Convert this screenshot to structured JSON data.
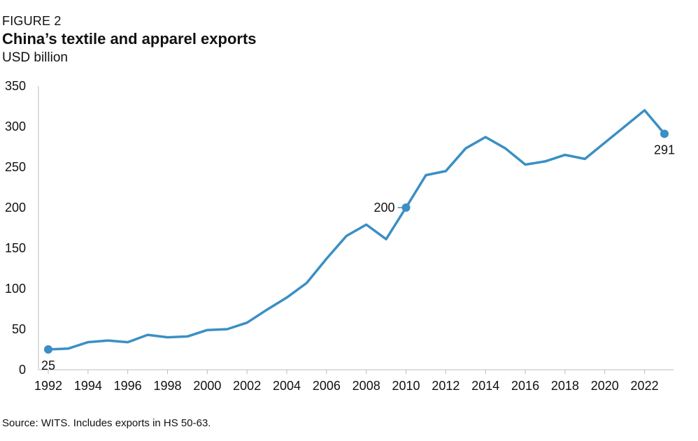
{
  "figure_label": "FIGURE 2",
  "chart_data": {
    "type": "line",
    "title": "China’s textile and apparel exports",
    "subtitle": "USD billion",
    "xlabel": "",
    "ylabel": "USD billion",
    "ylim": [
      0,
      350
    ],
    "yticks": [
      0,
      50,
      100,
      150,
      200,
      250,
      300,
      350
    ],
    "xlim": [
      1992,
      2023
    ],
    "xtick_labels": [
      "1992",
      "1994",
      "1996",
      "1998",
      "2000",
      "2002",
      "2004",
      "2006",
      "2008",
      "2010",
      "2012",
      "2014",
      "2016",
      "2018",
      "2020",
      "2022"
    ],
    "grid": false,
    "series": [
      {
        "name": "China textile and apparel exports",
        "color": "#3a8fc4",
        "x": [
          1992,
          1993,
          1994,
          1995,
          1996,
          1997,
          1998,
          1999,
          2000,
          2001,
          2002,
          2003,
          2004,
          2005,
          2006,
          2007,
          2008,
          2009,
          2010,
          2011,
          2012,
          2013,
          2014,
          2015,
          2016,
          2017,
          2018,
          2019,
          2020,
          2021,
          2022,
          2023
        ],
        "values": [
          25,
          26,
          34,
          36,
          34,
          43,
          40,
          41,
          49,
          50,
          58,
          74,
          89,
          107,
          137,
          165,
          179,
          161,
          200,
          240,
          245,
          273,
          287,
          273,
          253,
          257,
          265,
          260,
          280,
          300,
          320,
          291
        ]
      }
    ],
    "annotations": [
      {
        "x": 1992,
        "value": 25,
        "label": "25",
        "position": "below"
      },
      {
        "x": 2010,
        "value": 200,
        "label": "200",
        "position": "left"
      },
      {
        "x": 2023,
        "value": 291,
        "label": "291",
        "position": "below"
      }
    ]
  },
  "source": "Source: WITS. Includes exports in HS 50-63."
}
